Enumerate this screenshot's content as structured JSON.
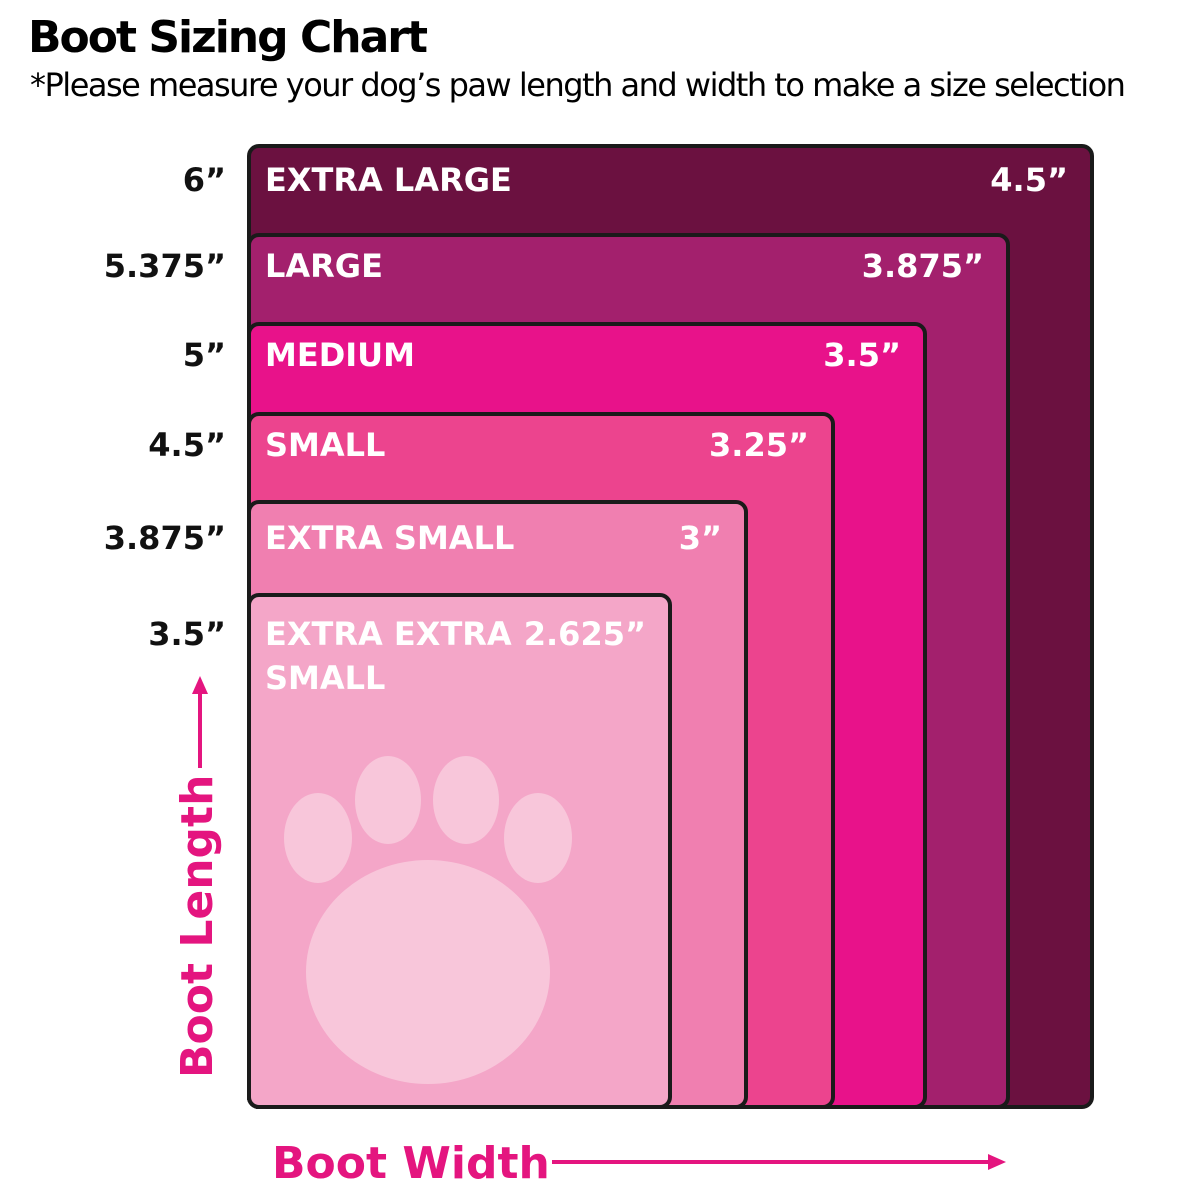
{
  "title": "Boot Sizing Chart",
  "subtitle": "*Please measure your dog’s paw length and width to make a size selection",
  "chart_data": {
    "type": "nested-rectangles",
    "xlabel": "Boot Width",
    "ylabel": "Boot Length",
    "sizes": [
      {
        "name": "EXTRA LARGE",
        "length": 6,
        "width": 4.5,
        "length_label": "6”",
        "width_label": "4.5”",
        "color": "#6b1140"
      },
      {
        "name": "LARGE",
        "length": 5.375,
        "width": 3.875,
        "length_label": "5.375”",
        "width_label": "3.875”",
        "color": "#a3206d"
      },
      {
        "name": "MEDIUM",
        "length": 5,
        "width": 3.5,
        "length_label": "5”",
        "width_label": "3.5”",
        "color": "#e8128a"
      },
      {
        "name": "SMALL",
        "length": 4.5,
        "width": 3.25,
        "length_label": "4.5”",
        "width_label": "3.25”",
        "color": "#ec448e"
      },
      {
        "name": "EXTRA SMALL",
        "length": 3.875,
        "width": 3,
        "length_label": "3.875”",
        "width_label": "3”",
        "color": "#f07fb0"
      },
      {
        "name": "EXTRA EXTRA SMALL",
        "name_lines": [
          "EXTRA EXTRA",
          "SMALL"
        ],
        "length": 3.5,
        "width": 2.625,
        "length_label": "3.5”",
        "width_label": "2.625”",
        "color": "#f4a6c8"
      }
    ],
    "colors": {
      "accent": "#e4157f",
      "outline": "#1a1a1a",
      "paw": "#f8c6da"
    }
  }
}
